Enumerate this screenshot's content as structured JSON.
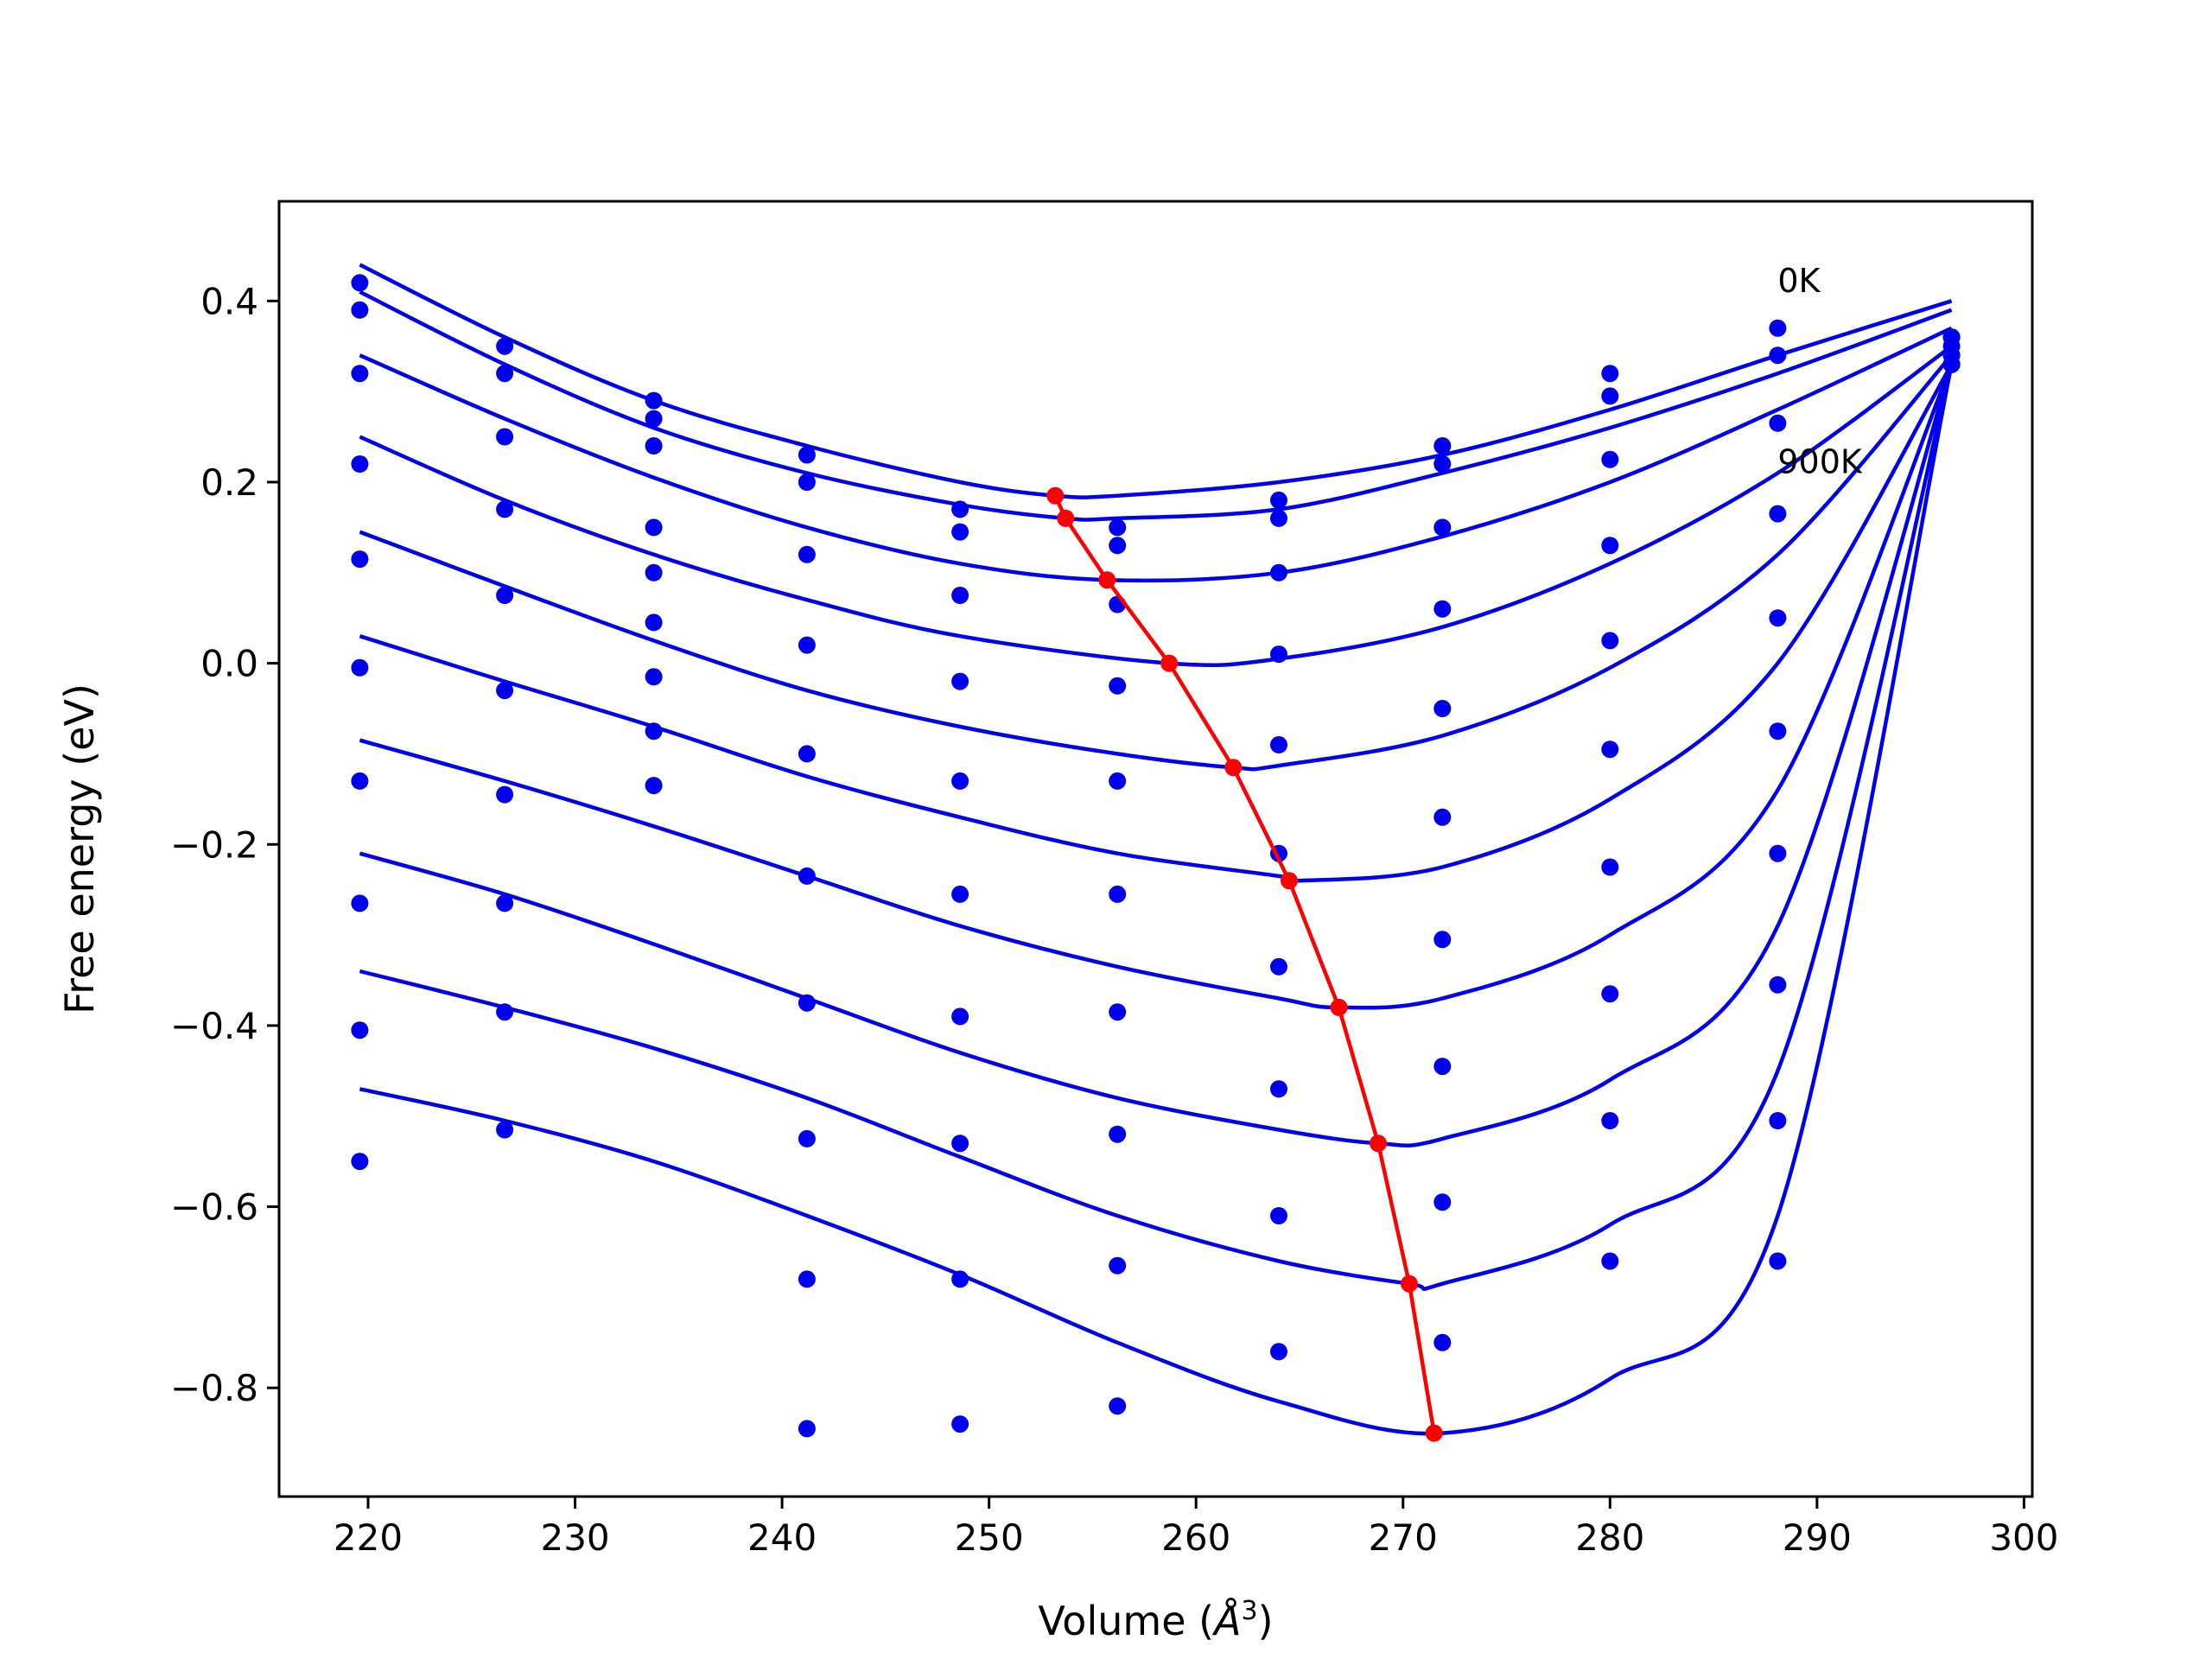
{
  "chart_data": {
    "type": "line",
    "title": "",
    "xlabel": "Volume (",
    "xlabel_unit": "Å",
    "xlabel_exp": "3",
    "xlabel_close": ")",
    "ylabel": "Free energy (eV)",
    "xlim": [
      215.7,
      300.4
    ],
    "ylim": [
      -0.92,
      0.51
    ],
    "xticks": [
      220,
      230,
      240,
      250,
      260,
      270,
      280,
      290,
      300
    ],
    "xtick_labels": [
      "220",
      "230",
      "240",
      "250",
      "260",
      "270",
      "280",
      "290",
      "300"
    ],
    "yticks": [
      -0.8,
      -0.6,
      -0.4,
      -0.2,
      0.0,
      0.2,
      0.4
    ],
    "ytick_labels": [
      "−0.8",
      "−0.6",
      "−0.4",
      "−0.2",
      "0.0",
      "0.2",
      "0.4"
    ],
    "grid": false,
    "colors": {
      "curves": "#0000ee",
      "points": "#0000ee",
      "minima": "#ff0000"
    },
    "annotations": [
      {
        "text": "0K",
        "x": 288.1,
        "y": 0.41
      },
      {
        "text": "900K",
        "x": 288.1,
        "y": 0.21
      }
    ],
    "volumes": [
      219.6,
      226.6,
      233.8,
      241.2,
      248.6,
      256.2,
      264.0,
      271.9,
      280.0,
      288.1,
      296.5
    ],
    "series": [
      {
        "points": [
          0.42,
          0.35,
          0.29,
          0.23,
          0.17,
          0.15,
          0.18,
          0.24,
          0.32,
          0.37,
          0.36
        ],
        "fit": [
          [
            219.6,
            0.44
          ],
          [
            226.6,
            0.36
          ],
          [
            233.8,
            0.29
          ],
          [
            241.2,
            0.24
          ],
          [
            248.6,
            0.2
          ],
          [
            253.2,
            0.185
          ],
          [
            256.2,
            0.185
          ],
          [
            264.0,
            0.2
          ],
          [
            271.9,
            0.23
          ],
          [
            280.0,
            0.28
          ],
          [
            288.1,
            0.34
          ],
          [
            296.5,
            0.4
          ]
        ]
      },
      {
        "points": [
          0.39,
          0.32,
          0.27,
          0.2,
          0.145,
          0.13,
          0.16,
          0.22,
          0.295,
          0.34,
          0.36
        ],
        "fit": [
          [
            219.6,
            0.41
          ],
          [
            226.6,
            0.33
          ],
          [
            233.8,
            0.26
          ],
          [
            241.2,
            0.21
          ],
          [
            248.6,
            0.175
          ],
          [
            253.7,
            0.16
          ],
          [
            256.2,
            0.16
          ],
          [
            264.0,
            0.17
          ],
          [
            271.9,
            0.21
          ],
          [
            280.0,
            0.26
          ],
          [
            288.1,
            0.32
          ],
          [
            296.5,
            0.39
          ]
        ]
      },
      {
        "points": [
          0.32,
          0.25,
          0.24,
          0.12,
          0.075,
          0.065,
          0.1,
          0.15,
          0.225,
          0.265,
          0.36
        ],
        "fit": [
          [
            219.6,
            0.34
          ],
          [
            226.6,
            0.27
          ],
          [
            233.8,
            0.205
          ],
          [
            241.2,
            0.15
          ],
          [
            248.6,
            0.11
          ],
          [
            255.7,
            0.092
          ],
          [
            264.0,
            0.1
          ],
          [
            271.9,
            0.14
          ],
          [
            280.0,
            0.2
          ],
          [
            288.1,
            0.28
          ],
          [
            296.5,
            0.37
          ]
        ]
      },
      {
        "points": [
          0.22,
          0.17,
          0.15,
          0.02,
          -0.02,
          -0.025,
          0.01,
          0.06,
          0.13,
          0.165,
          0.35
        ],
        "fit": [
          [
            219.6,
            0.25
          ],
          [
            226.6,
            0.18
          ],
          [
            233.8,
            0.12
          ],
          [
            241.2,
            0.07
          ],
          [
            248.6,
            0.03
          ],
          [
            258.7,
            0.0
          ],
          [
            264.0,
            0.005
          ],
          [
            271.9,
            0.04
          ],
          [
            280.0,
            0.11
          ],
          [
            288.1,
            0.21
          ],
          [
            296.5,
            0.35
          ]
        ]
      },
      {
        "points": [
          0.115,
          0.075,
          0.1,
          -0.1,
          -0.13,
          -0.13,
          -0.09,
          -0.05,
          0.025,
          0.05,
          0.34
        ],
        "fit": [
          [
            219.6,
            0.145
          ],
          [
            226.6,
            0.085
          ],
          [
            233.8,
            0.025
          ],
          [
            241.2,
            -0.03
          ],
          [
            248.6,
            -0.07
          ],
          [
            256.2,
            -0.1
          ],
          [
            261.8,
            -0.115
          ],
          [
            264.0,
            -0.113
          ],
          [
            271.9,
            -0.08
          ],
          [
            280.0,
            -0.005
          ],
          [
            288.1,
            0.12
          ],
          [
            296.5,
            0.34
          ]
        ]
      },
      {
        "points": [
          -0.005,
          -0.03,
          0.045,
          -0.235,
          -0.255,
          -0.255,
          -0.21,
          -0.17,
          -0.095,
          -0.075,
          0.34
        ],
        "fit": [
          [
            219.6,
            0.03
          ],
          [
            226.6,
            -0.02
          ],
          [
            233.8,
            -0.07
          ],
          [
            241.2,
            -0.125
          ],
          [
            248.6,
            -0.17
          ],
          [
            256.2,
            -0.21
          ],
          [
            264.0,
            -0.235
          ],
          [
            265.0,
            -0.24
          ],
          [
            271.9,
            -0.225
          ],
          [
            280.0,
            -0.15
          ],
          [
            288.1,
            0.0
          ],
          [
            296.5,
            0.33
          ]
        ]
      },
      {
        "points": [
          -0.13,
          -0.145,
          -0.015,
          -0.375,
          -0.39,
          -0.385,
          -0.335,
          -0.305,
          -0.225,
          -0.21,
          0.33
        ],
        "fit": [
          [
            219.6,
            -0.085
          ],
          [
            226.6,
            -0.13
          ],
          [
            233.8,
            -0.18
          ],
          [
            241.2,
            -0.235
          ],
          [
            248.6,
            -0.29
          ],
          [
            256.2,
            -0.335
          ],
          [
            264.0,
            -0.37
          ],
          [
            266.9,
            -0.38
          ],
          [
            271.9,
            -0.37
          ],
          [
            280.0,
            -0.3
          ],
          [
            288.1,
            -0.14
          ],
          [
            296.5,
            0.33
          ]
        ]
      },
      {
        "points": [
          -0.265,
          -0.265,
          -0.075,
          -0.525,
          -0.53,
          -0.52,
          -0.47,
          -0.445,
          -0.365,
          -0.355,
          0.33
        ],
        "fit": [
          [
            219.6,
            -0.21
          ],
          [
            226.6,
            -0.255
          ],
          [
            233.8,
            -0.31
          ],
          [
            241.2,
            -0.37
          ],
          [
            248.6,
            -0.43
          ],
          [
            256.2,
            -0.48
          ],
          [
            264.0,
            -0.515
          ],
          [
            268.8,
            -0.53
          ],
          [
            271.9,
            -0.525
          ],
          [
            280.0,
            -0.46
          ],
          [
            288.1,
            -0.29
          ],
          [
            296.5,
            0.33
          ]
        ]
      },
      {
        "points": [
          -0.405,
          -0.385,
          -0.135,
          -0.68,
          -0.68,
          -0.665,
          -0.61,
          -0.595,
          -0.505,
          -0.505,
          0.33
        ],
        "fit": [
          [
            219.6,
            -0.34
          ],
          [
            226.6,
            -0.38
          ],
          [
            233.8,
            -0.425
          ],
          [
            241.2,
            -0.48
          ],
          [
            248.6,
            -0.545
          ],
          [
            256.2,
            -0.61
          ],
          [
            264.0,
            -0.66
          ],
          [
            270.3,
            -0.685
          ],
          [
            271.9,
            -0.685
          ],
          [
            280.0,
            -0.62
          ],
          [
            288.1,
            -0.45
          ],
          [
            296.5,
            0.33
          ]
        ]
      },
      {
        "points": [
          -0.55,
          -0.515,
          null,
          -0.845,
          -0.84,
          -0.82,
          -0.76,
          -0.75,
          -0.66,
          -0.66,
          0.33
        ],
        "fit": [
          [
            219.6,
            -0.47
          ],
          [
            226.6,
            -0.505
          ],
          [
            233.8,
            -0.55
          ],
          [
            241.2,
            -0.61
          ],
          [
            248.6,
            -0.675
          ],
          [
            256.2,
            -0.75
          ],
          [
            264.0,
            -0.815
          ],
          [
            271.9,
            -0.85
          ],
          [
            280.0,
            -0.79
          ],
          [
            288.1,
            -0.61
          ],
          [
            296.5,
            0.33
          ]
        ]
      }
    ],
    "minima": {
      "x": [
        253.2,
        253.7,
        255.7,
        258.7,
        261.8,
        264.5,
        266.9,
        268.8,
        270.3,
        271.5
      ],
      "y": [
        0.185,
        0.16,
        0.092,
        0.0,
        -0.115,
        -0.24,
        -0.38,
        -0.53,
        -0.685,
        -0.85
      ]
    }
  }
}
